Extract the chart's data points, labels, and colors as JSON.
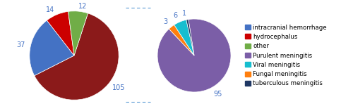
{
  "pie1_values": [
    105,
    37,
    14,
    12
  ],
  "pie1_labels": [
    "105",
    "37",
    "14",
    "12"
  ],
  "pie1_colors": [
    "#8B1A1A",
    "#4472C4",
    "#CC0000",
    "#70AD47"
  ],
  "pie1_startangle": 72,
  "pie1_counterclock": false,
  "pie2_values": [
    95,
    3,
    6,
    1
  ],
  "pie2_labels": [
    "95",
    "3",
    "6",
    "1"
  ],
  "pie2_colors": [
    "#7B5EA7",
    "#FF7F0E",
    "#17BECF",
    "#1F3864"
  ],
  "pie2_startangle": 99,
  "pie2_counterclock": false,
  "legend_labels": [
    "intracranial hemorrhage",
    "hydrocephalus",
    "other",
    "Purulent meningitis",
    "Viral meningitis",
    "Fungal meningitis",
    "tuberculous meningitis"
  ],
  "legend_colors": [
    "#4472C4",
    "#CC0000",
    "#70AD47",
    "#7B5EA7",
    "#17BECF",
    "#FF7F0E",
    "#1F3864"
  ],
  "connector_color": "#5B9BD5",
  "background_color": "#FFFFFF"
}
